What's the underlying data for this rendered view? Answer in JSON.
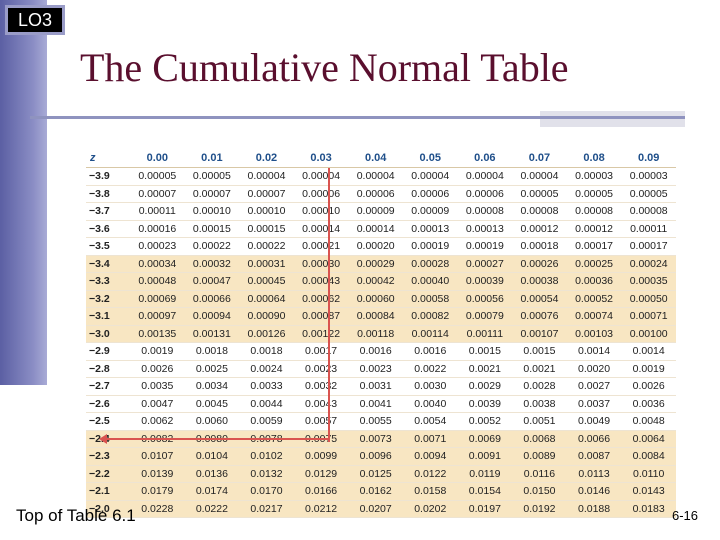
{
  "badge": "LO3",
  "title": "The Cumulative Normal Table",
  "table": {
    "headers": [
      "z",
      "0.00",
      "0.01",
      "0.02",
      "0.03",
      "0.04",
      "0.05",
      "0.06",
      "0.07",
      "0.08",
      "0.09"
    ],
    "rows": [
      {
        "z": "−3.9",
        "values": [
          "0.00005",
          "0.00005",
          "0.00004",
          "0.00004",
          "0.00004",
          "0.00004",
          "0.00004",
          "0.00004",
          "0.00003",
          "0.00003"
        ]
      },
      {
        "z": "−3.8",
        "values": [
          "0.00007",
          "0.00007",
          "0.00007",
          "0.00006",
          "0.00006",
          "0.00006",
          "0.00006",
          "0.00005",
          "0.00005",
          "0.00005"
        ]
      },
      {
        "z": "−3.7",
        "values": [
          "0.00011",
          "0.00010",
          "0.00010",
          "0.00010",
          "0.00009",
          "0.00009",
          "0.00008",
          "0.00008",
          "0.00008",
          "0.00008"
        ]
      },
      {
        "z": "−3.6",
        "values": [
          "0.00016",
          "0.00015",
          "0.00015",
          "0.00014",
          "0.00014",
          "0.00013",
          "0.00013",
          "0.00012",
          "0.00012",
          "0.00011"
        ]
      },
      {
        "z": "−3.5",
        "values": [
          "0.00023",
          "0.00022",
          "0.00022",
          "0.00021",
          "0.00020",
          "0.00019",
          "0.00019",
          "0.00018",
          "0.00017",
          "0.00017"
        ]
      },
      {
        "z": "−3.4",
        "shaded": true,
        "values": [
          "0.00034",
          "0.00032",
          "0.00031",
          "0.00030",
          "0.00029",
          "0.00028",
          "0.00027",
          "0.00026",
          "0.00025",
          "0.00024"
        ]
      },
      {
        "z": "−3.3",
        "shaded": true,
        "values": [
          "0.00048",
          "0.00047",
          "0.00045",
          "0.00043",
          "0.00042",
          "0.00040",
          "0.00039",
          "0.00038",
          "0.00036",
          "0.00035"
        ]
      },
      {
        "z": "−3.2",
        "shaded": true,
        "values": [
          "0.00069",
          "0.00066",
          "0.00064",
          "0.00062",
          "0.00060",
          "0.00058",
          "0.00056",
          "0.00054",
          "0.00052",
          "0.00050"
        ]
      },
      {
        "z": "−3.1",
        "shaded": true,
        "values": [
          "0.00097",
          "0.00094",
          "0.00090",
          "0.00087",
          "0.00084",
          "0.00082",
          "0.00079",
          "0.00076",
          "0.00074",
          "0.00071"
        ]
      },
      {
        "z": "−3.0",
        "shaded": true,
        "values": [
          "0.00135",
          "0.00131",
          "0.00126",
          "0.00122",
          "0.00118",
          "0.00114",
          "0.00111",
          "0.00107",
          "0.00103",
          "0.00100"
        ]
      },
      {
        "z": "−2.9",
        "values": [
          "0.0019",
          "0.0018",
          "0.0018",
          "0.0017",
          "0.0016",
          "0.0016",
          "0.0015",
          "0.0015",
          "0.0014",
          "0.0014"
        ]
      },
      {
        "z": "−2.8",
        "values": [
          "0.0026",
          "0.0025",
          "0.0024",
          "0.0023",
          "0.0023",
          "0.0022",
          "0.0021",
          "0.0021",
          "0.0020",
          "0.0019"
        ]
      },
      {
        "z": "−2.7",
        "values": [
          "0.0035",
          "0.0034",
          "0.0033",
          "0.0032",
          "0.0031",
          "0.0030",
          "0.0029",
          "0.0028",
          "0.0027",
          "0.0026"
        ]
      },
      {
        "z": "−2.6",
        "values": [
          "0.0047",
          "0.0045",
          "0.0044",
          "0.0043",
          "0.0041",
          "0.0040",
          "0.0039",
          "0.0038",
          "0.0037",
          "0.0036"
        ]
      },
      {
        "z": "−2.5",
        "values": [
          "0.0062",
          "0.0060",
          "0.0059",
          "0.0057",
          "0.0055",
          "0.0054",
          "0.0052",
          "0.0051",
          "0.0049",
          "0.0048"
        ]
      },
      {
        "z": "−2.4",
        "shaded": true,
        "values": [
          "0.0082",
          "0.0080",
          "0.0078",
          "0.0075",
          "0.0073",
          "0.0071",
          "0.0069",
          "0.0068",
          "0.0066",
          "0.0064"
        ]
      },
      {
        "z": "−2.3",
        "shaded": true,
        "values": [
          "0.0107",
          "0.0104",
          "0.0102",
          "0.0099",
          "0.0096",
          "0.0094",
          "0.0091",
          "0.0089",
          "0.0087",
          "0.0084"
        ]
      },
      {
        "z": "−2.2",
        "shaded": true,
        "values": [
          "0.0139",
          "0.0136",
          "0.0132",
          "0.0129",
          "0.0125",
          "0.0122",
          "0.0119",
          "0.0116",
          "0.0113",
          "0.0110"
        ]
      },
      {
        "z": "−2.1",
        "shaded": true,
        "values": [
          "0.0179",
          "0.0174",
          "0.0170",
          "0.0166",
          "0.0162",
          "0.0158",
          "0.0154",
          "0.0150",
          "0.0146",
          "0.0143"
        ]
      },
      {
        "z": "−2.0",
        "shaded": true,
        "values": [
          "0.0228",
          "0.0222",
          "0.0217",
          "0.0212",
          "0.0207",
          "0.0202",
          "0.0197",
          "0.0192",
          "0.0188",
          "0.0183"
        ]
      }
    ]
  },
  "caption": "Top of Table 6.1",
  "page_number": "6-16",
  "colors": {
    "title": "#5a0f2e",
    "header": "#1f4f8a",
    "shade": "#f8e6c2",
    "guide": "#d9534f"
  }
}
